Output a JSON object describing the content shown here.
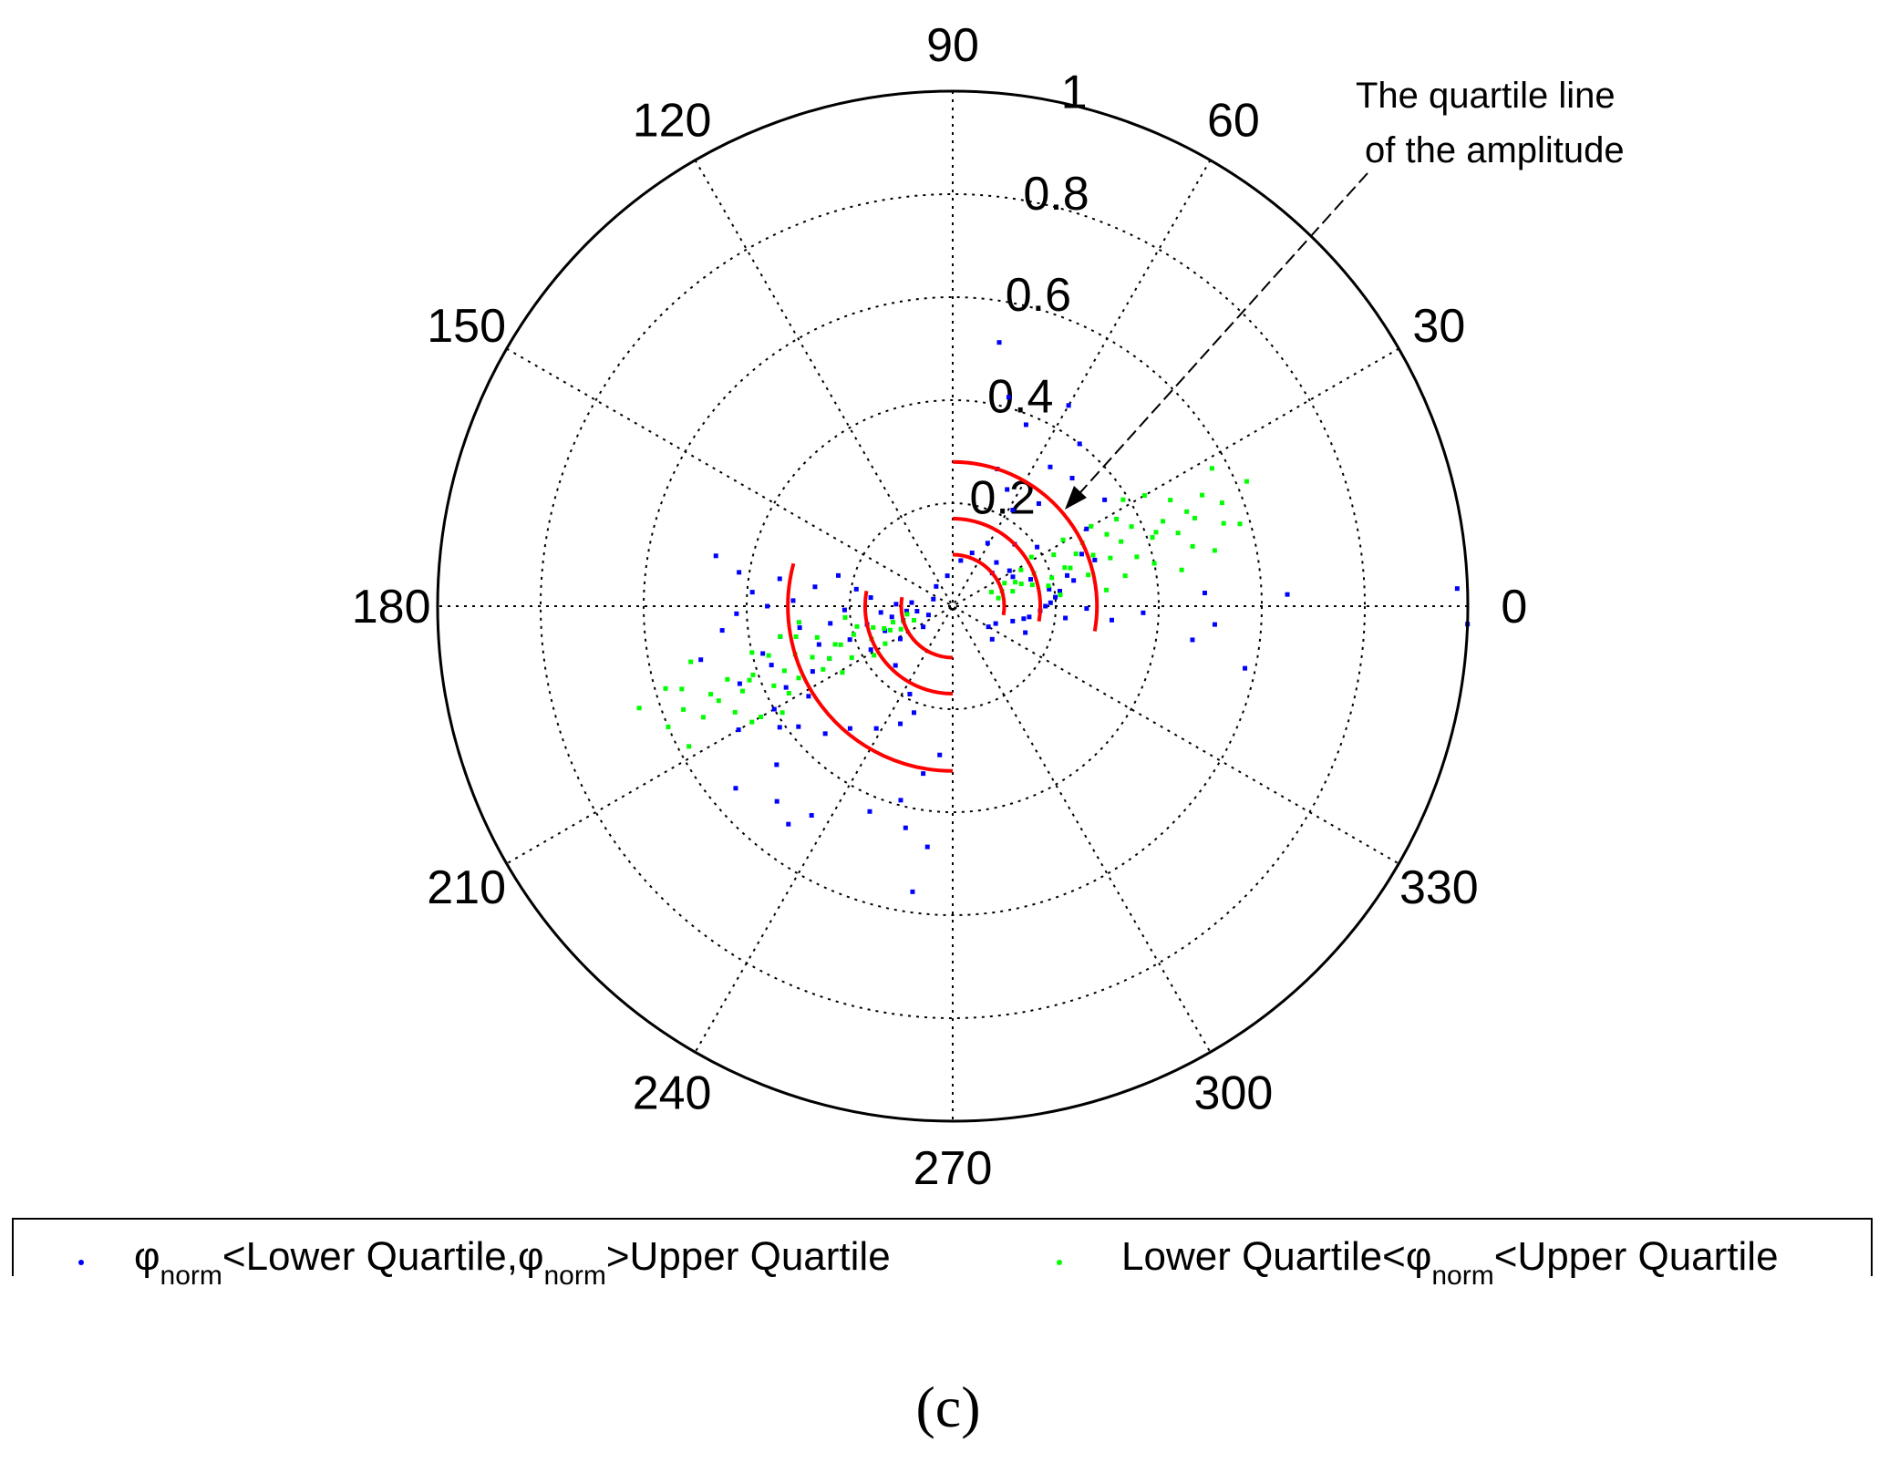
{
  "chart_data": {
    "type": "scatter",
    "projection": "polar",
    "title": "",
    "angle_ticks": [
      "0",
      "30",
      "60",
      "90",
      "120",
      "150",
      "180",
      "210",
      "240",
      "270",
      "300",
      "330"
    ],
    "angle_tick_values": [
      0,
      30,
      60,
      90,
      120,
      150,
      180,
      210,
      240,
      270,
      300,
      330
    ],
    "radius_ticks": [
      "0.2",
      "0.4",
      "0.6",
      "0.8",
      "1"
    ],
    "radius_tick_values": [
      0.2,
      0.4,
      0.6,
      0.8,
      1.0
    ],
    "rlim": [
      0,
      1
    ],
    "grid": true,
    "legend_position": "bottom",
    "series": [
      {
        "name": "norm<Lower Quartile,norm>Upper Quartile",
        "color": "#0000ff",
        "marker": "point",
        "points": [
          [
            0.14,
            61
          ],
          [
            0.12,
            45
          ],
          [
            0.13,
            26
          ],
          [
            0.1,
            40
          ],
          [
            0.16,
            19
          ],
          [
            0.19,
            10
          ],
          [
            0.22,
            58
          ],
          [
            0.25,
            65
          ],
          [
            0.28,
            72
          ],
          [
            0.33,
            55
          ],
          [
            0.38,
            68
          ],
          [
            0.42,
            75
          ],
          [
            0.45,
            60
          ],
          [
            0.52,
            80
          ],
          [
            0.4,
            52
          ],
          [
            0.34,
            47
          ],
          [
            0.3,
            30
          ],
          [
            0.27,
            22
          ],
          [
            0.23,
            15
          ],
          [
            0.2,
            5
          ],
          [
            0.17,
            -3
          ],
          [
            0.15,
            -8
          ],
          [
            0.12,
            -14
          ],
          [
            0.09,
            -22
          ],
          [
            0.08,
            -30
          ],
          [
            0.1,
            -40
          ],
          [
            0.14,
            -10
          ],
          [
            0.18,
            0
          ],
          [
            0.21,
            8
          ],
          [
            0.24,
            12
          ],
          [
            0.29,
            18
          ],
          [
            0.31,
            -5
          ],
          [
            0.37,
            -2
          ],
          [
            0.47,
            -8
          ],
          [
            0.51,
            -4
          ],
          [
            0.58,
            -12
          ],
          [
            0.49,
            3
          ],
          [
            0.36,
            35
          ],
          [
            0.32,
            42
          ],
          [
            0.26,
            50
          ],
          [
            0.11,
            70
          ],
          [
            0.09,
            80
          ],
          [
            0.06,
            100
          ],
          [
            0.05,
            130
          ],
          [
            0.04,
            160
          ],
          [
            0.05,
            200
          ],
          [
            0.07,
            215
          ],
          [
            0.19,
            2
          ],
          [
            0.22,
            -6
          ],
          [
            0.26,
            -1
          ],
          [
            0.15,
            -20
          ],
          [
            0.2,
            35
          ],
          [
            0.17,
            45
          ],
          [
            0.13,
            32
          ],
          [
            0.98,
            2
          ],
          [
            1.0,
            -2
          ],
          [
            0.65,
            2
          ],
          [
            0.14,
            185
          ],
          [
            0.17,
            192
          ],
          [
            0.21,
            182
          ],
          [
            0.24,
            188
          ],
          [
            0.27,
            196
          ],
          [
            0.3,
            205
          ],
          [
            0.33,
            212
          ],
          [
            0.36,
            180
          ],
          [
            0.39,
            176
          ],
          [
            0.42,
            171
          ],
          [
            0.47,
            168
          ],
          [
            0.45,
            186
          ],
          [
            0.5,
            192
          ],
          [
            0.44,
            200
          ],
          [
            0.4,
            210
          ],
          [
            0.38,
            218
          ],
          [
            0.35,
            225
          ],
          [
            0.31,
            230
          ],
          [
            0.28,
            238
          ],
          [
            0.25,
            246
          ],
          [
            0.22,
            250
          ],
          [
            0.19,
            244
          ],
          [
            0.16,
            226
          ],
          [
            0.12,
            212
          ],
          [
            0.1,
            196
          ],
          [
            0.09,
            186
          ],
          [
            0.11,
            178
          ],
          [
            0.16,
            174
          ],
          [
            0.19,
            170
          ],
          [
            0.23,
            165
          ],
          [
            0.27,
            172
          ],
          [
            0.31,
            178
          ],
          [
            0.34,
            190
          ],
          [
            0.37,
            198
          ],
          [
            0.41,
            215
          ],
          [
            0.46,
            222
          ],
          [
            0.51,
            228
          ],
          [
            0.55,
            220
          ],
          [
            0.49,
            236
          ],
          [
            0.43,
            248
          ],
          [
            0.39,
            255
          ],
          [
            0.33,
            260
          ],
          [
            0.29,
            265
          ],
          [
            0.44,
            258
          ],
          [
            0.47,
            264
          ],
          [
            0.56,
            262
          ],
          [
            0.21,
            198
          ],
          [
            0.26,
            203
          ],
          [
            0.18,
            208
          ],
          [
            0.14,
            200
          ],
          [
            0.12,
            190
          ],
          [
            0.07,
            188
          ],
          [
            0.08,
            175
          ],
          [
            0.34,
            171
          ],
          [
            0.3,
            188
          ],
          [
            0.36,
            206
          ],
          [
            0.53,
            233
          ],
          [
            0.48,
            210
          ],
          [
            0.42,
            182
          ],
          [
            0.38,
            194
          ]
        ]
      },
      {
        "name": "Lower Quartile<norm<Upper Quartile",
        "color": "#00ff00",
        "marker": "point",
        "points": [
          [
            0.08,
            20
          ],
          [
            0.11,
            24
          ],
          [
            0.14,
            18
          ],
          [
            0.17,
            22
          ],
          [
            0.2,
            16
          ],
          [
            0.23,
            19
          ],
          [
            0.26,
            23
          ],
          [
            0.29,
            20
          ],
          [
            0.32,
            17
          ],
          [
            0.35,
            21
          ],
          [
            0.38,
            24
          ],
          [
            0.41,
            19
          ],
          [
            0.44,
            22
          ],
          [
            0.47,
            26
          ],
          [
            0.5,
            20
          ],
          [
            0.53,
            24
          ],
          [
            0.56,
            21
          ],
          [
            0.62,
            23
          ],
          [
            0.57,
            28
          ],
          [
            0.48,
            14
          ],
          [
            0.45,
            9
          ],
          [
            0.4,
            12
          ],
          [
            0.36,
            28
          ],
          [
            0.31,
            30
          ],
          [
            0.27,
            13
          ],
          [
            0.22,
            27
          ],
          [
            0.19,
            12
          ],
          [
            0.15,
            28
          ],
          [
            0.12,
            14
          ],
          [
            0.09,
            10
          ],
          [
            0.3,
            6
          ],
          [
            0.34,
            10
          ],
          [
            0.52,
            12
          ],
          [
            0.58,
            16
          ],
          [
            0.43,
            30
          ],
          [
            0.39,
            32
          ],
          [
            0.25,
            31
          ],
          [
            0.18,
            32
          ],
          [
            0.21,
            6
          ],
          [
            0.33,
            25
          ],
          [
            0.28,
            26
          ],
          [
            0.46,
            18
          ],
          [
            0.1,
            17
          ],
          [
            0.13,
            21
          ],
          [
            0.16,
            15
          ],
          [
            0.24,
            18
          ],
          [
            0.37,
            15
          ],
          [
            0.42,
            20
          ],
          [
            0.49,
            22
          ],
          [
            0.55,
            17
          ],
          [
            0.08,
            200
          ],
          [
            0.11,
            204
          ],
          [
            0.14,
            198
          ],
          [
            0.17,
            202
          ],
          [
            0.2,
            196
          ],
          [
            0.23,
            199
          ],
          [
            0.26,
            203
          ],
          [
            0.29,
            200
          ],
          [
            0.32,
            197
          ],
          [
            0.35,
            201
          ],
          [
            0.38,
            204
          ],
          [
            0.41,
            199
          ],
          [
            0.44,
            202
          ],
          [
            0.47,
            206
          ],
          [
            0.5,
            200
          ],
          [
            0.53,
            204
          ],
          [
            0.56,
            201
          ],
          [
            0.6,
            203
          ],
          [
            0.64,
            198
          ],
          [
            0.58,
            208
          ],
          [
            0.45,
            210
          ],
          [
            0.4,
            193
          ],
          [
            0.36,
            208
          ],
          [
            0.31,
            191
          ],
          [
            0.27,
            193
          ],
          [
            0.22,
            207
          ],
          [
            0.19,
            192
          ],
          [
            0.15,
            209
          ],
          [
            0.12,
            195
          ],
          [
            0.09,
            190
          ],
          [
            0.3,
            186
          ],
          [
            0.34,
            190
          ],
          [
            0.52,
            192
          ],
          [
            0.58,
            196
          ],
          [
            0.43,
            210
          ],
          [
            0.39,
            212
          ],
          [
            0.25,
            211
          ],
          [
            0.18,
            212
          ],
          [
            0.21,
            186
          ],
          [
            0.33,
            205
          ],
          [
            0.28,
            206
          ],
          [
            0.46,
            198
          ],
          [
            0.1,
            197
          ],
          [
            0.13,
            201
          ],
          [
            0.16,
            195
          ],
          [
            0.24,
            198
          ],
          [
            0.37,
            195
          ],
          [
            0.42,
            200
          ],
          [
            0.49,
            202
          ],
          [
            0.55,
            197
          ]
        ]
      },
      {
        "name": "The quartile line of the amplitude",
        "color": "#ff0000",
        "type": "arc",
        "arcs": [
          {
            "r": 0.1,
            "theta": [
              -10,
              90
            ]
          },
          {
            "r": 0.17,
            "theta": [
              -10,
              90
            ]
          },
          {
            "r": 0.28,
            "theta": [
              -10,
              90
            ]
          },
          {
            "r": 0.1,
            "theta": [
              170,
              270
            ]
          },
          {
            "r": 0.17,
            "theta": [
              170,
              270
            ]
          },
          {
            "r": 0.32,
            "theta": [
              165,
              270
            ]
          }
        ]
      }
    ],
    "annotation": {
      "lines": [
        "The quartile line",
        "of the amplitude"
      ]
    },
    "legend": {
      "entries": [
        {
          "phi_1": "φ",
          "sub_1": "norm",
          "text_1": "<Lower Quartile,",
          "phi_2": "φ",
          "sub_2": "norm",
          "text_2": ">Upper Quartile",
          "color": "#0000ff"
        },
        {
          "text_1": "Lower Quartile<",
          "phi": "φ",
          "sub": "norm",
          "text_2": "<Upper Quartile",
          "color": "#00ff00"
        }
      ]
    },
    "panel_label": "(c)"
  }
}
